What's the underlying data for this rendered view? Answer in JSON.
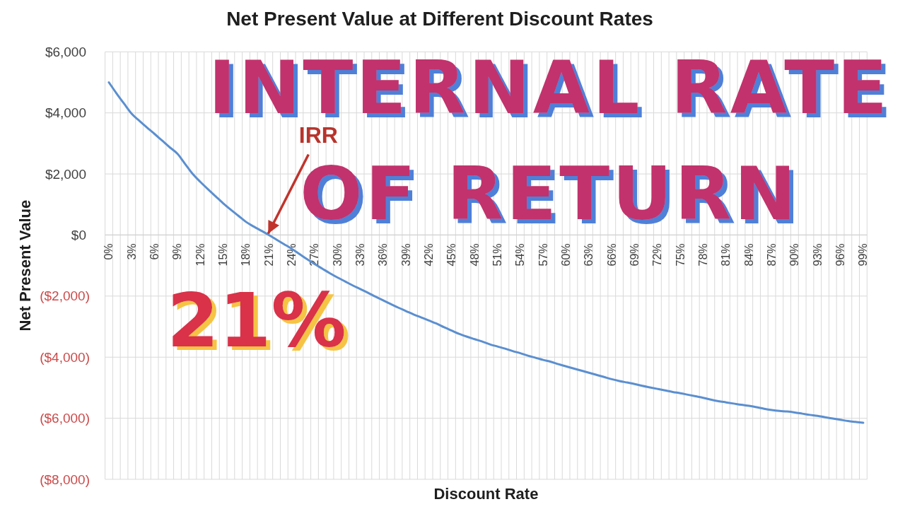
{
  "chart_data": {
    "type": "line",
    "title": "Net Present Value at Different Discount Rates",
    "xlabel": "Discount Rate",
    "ylabel": "Net Present Value",
    "categories": [
      "0%",
      null,
      null,
      "3%",
      null,
      null,
      "6%",
      null,
      null,
      "9%",
      null,
      null,
      "12%",
      null,
      null,
      "15%",
      null,
      null,
      "18%",
      null,
      null,
      "21%",
      null,
      null,
      "24%",
      null,
      null,
      "27%",
      null,
      null,
      "30%",
      null,
      null,
      "33%",
      null,
      null,
      "36%",
      null,
      null,
      "39%",
      null,
      null,
      "42%",
      null,
      null,
      "45%",
      null,
      null,
      "48%",
      null,
      null,
      "51%",
      null,
      null,
      "54%",
      null,
      null,
      "57%",
      null,
      null,
      "60%",
      null,
      null,
      "63%",
      null,
      null,
      "66%",
      null,
      null,
      "69%",
      null,
      null,
      "72%",
      null,
      null,
      "75%",
      null,
      null,
      "78%",
      null,
      null,
      "81%",
      null,
      null,
      "84%",
      null,
      null,
      "87%",
      null,
      null,
      "90%",
      null,
      null,
      "93%",
      null,
      null,
      "96%",
      null,
      null,
      "99%"
    ],
    "series": [
      {
        "color": "#5b8fd0",
        "values": [
          5000,
          4640,
          4300,
          3970,
          3740,
          3520,
          3310,
          3090,
          2870,
          2660,
          2330,
          2000,
          1740,
          1500,
          1270,
          1040,
          830,
          630,
          430,
          280,
          140,
          0,
          -150,
          -300,
          -450,
          -620,
          -790,
          -950,
          -1100,
          -1250,
          -1390,
          -1520,
          -1650,
          -1770,
          -1890,
          -2020,
          -2140,
          -2260,
          -2380,
          -2490,
          -2600,
          -2700,
          -2800,
          -2900,
          -3020,
          -3130,
          -3240,
          -3330,
          -3410,
          -3490,
          -3580,
          -3650,
          -3720,
          -3800,
          -3870,
          -3950,
          -4020,
          -4090,
          -4150,
          -4230,
          -4300,
          -4370,
          -4440,
          -4510,
          -4580,
          -4650,
          -4720,
          -4780,
          -4830,
          -4880,
          -4940,
          -4990,
          -5040,
          -5090,
          -5140,
          -5180,
          -5230,
          -5280,
          -5330,
          -5390,
          -5440,
          -5480,
          -5520,
          -5560,
          -5590,
          -5640,
          -5690,
          -5730,
          -5760,
          -5780,
          -5810,
          -5850,
          -5890,
          -5920,
          -5970,
          -6010,
          -6050,
          -6090,
          -6120,
          -6150
        ]
      }
    ],
    "ylim": [
      -8000,
      6000
    ],
    "yticks": [
      {
        "value": -8000,
        "label": "($8,000)"
      },
      {
        "value": -6000,
        "label": "($6,000)"
      },
      {
        "value": -4000,
        "label": "($4,000)"
      },
      {
        "value": -2000,
        "label": "($2,000)"
      },
      {
        "value": 0,
        "label": "$0"
      },
      {
        "value": 2000,
        "label": "$2,000"
      },
      {
        "value": 4000,
        "label": "$4,000"
      },
      {
        "value": 6000,
        "label": "$6,000"
      }
    ],
    "grid": true,
    "annotations": [
      {
        "text": "IRR",
        "x": "21%",
        "y": 0
      },
      "INTERNAL RATE OF RETURN",
      "21%"
    ]
  }
}
